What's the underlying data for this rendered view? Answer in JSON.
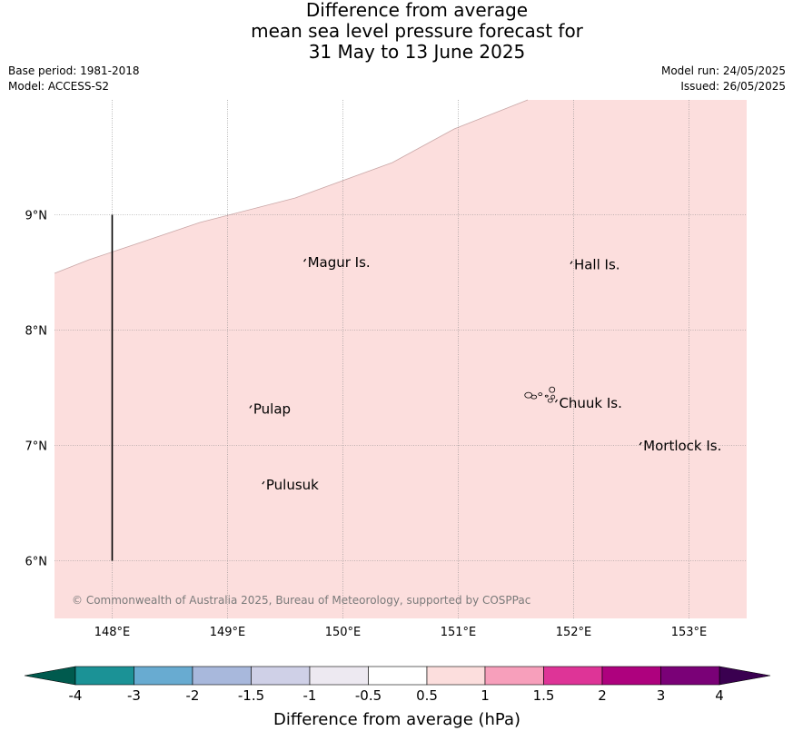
{
  "title": {
    "line1": "Difference from average",
    "line2": "mean sea level pressure forecast for",
    "line3": "31 May to 13 June 2025"
  },
  "meta": {
    "base_period": "Base period: 1981-2018",
    "model": "Model: ACCESS-S2",
    "model_run": "Model run: 24/05/2025",
    "issued": "Issued: 26/05/2025"
  },
  "map": {
    "fill_color": "#fcdedd",
    "grid_color": "#888888",
    "lon_ticks": [
      {
        "value": 148,
        "label": "148°E"
      },
      {
        "value": 149,
        "label": "149°E"
      },
      {
        "value": 150,
        "label": "150°E"
      },
      {
        "value": 151,
        "label": "151°E"
      },
      {
        "value": 152,
        "label": "152°E"
      },
      {
        "value": 153,
        "label": "153°E"
      }
    ],
    "lat_ticks": [
      {
        "value": 9,
        "label": "9°N"
      },
      {
        "value": 8,
        "label": "8°N"
      },
      {
        "value": 7,
        "label": "7°N"
      },
      {
        "value": 6,
        "label": "6°N"
      }
    ],
    "places": [
      {
        "name": "Magur Is.",
        "lon": 149.67,
        "lat": 8.57
      },
      {
        "name": "Hall Is.",
        "lon": 151.98,
        "lat": 8.55
      },
      {
        "name": "Pulap",
        "lon": 149.2,
        "lat": 7.3
      },
      {
        "name": "Chuuk Is.",
        "lon": 151.85,
        "lat": 7.35
      },
      {
        "name": "Mortlock Is.",
        "lon": 152.58,
        "lat": 6.98
      },
      {
        "name": "Pulusuk",
        "lon": 149.31,
        "lat": 6.64
      }
    ],
    "copyright": "© Commonwealth of Australia 2025, Bureau of Meteorology, supported by COSPPac"
  },
  "colorbar": {
    "title": "Difference from average (hPa)",
    "tick_labels": [
      "-4",
      "-3",
      "-2",
      "-1.5",
      "-1",
      "-0.5",
      "0.5",
      "1",
      "1.5",
      "2",
      "3",
      "4"
    ],
    "under_color": "#005a4e",
    "over_color": "#3a0050",
    "bins": [
      {
        "from": -4,
        "to": -3,
        "color": "#1b9296"
      },
      {
        "from": -3,
        "to": -2,
        "color": "#68abd1"
      },
      {
        "from": -2,
        "to": -1.5,
        "color": "#a8b8dc"
      },
      {
        "from": -1.5,
        "to": -1,
        "color": "#cfd0e7"
      },
      {
        "from": -1,
        "to": -0.5,
        "color": "#ede9f1"
      },
      {
        "from": -0.5,
        "to": 0.5,
        "color": "#ffffff"
      },
      {
        "from": 0.5,
        "to": 1,
        "color": "#fcdedd"
      },
      {
        "from": 1,
        "to": 1.5,
        "color": "#f79fbb"
      },
      {
        "from": 1.5,
        "to": 2,
        "color": "#de3497"
      },
      {
        "from": 2,
        "to": 3,
        "color": "#ae017e"
      },
      {
        "from": 3,
        "to": 4,
        "color": "#7a0177"
      }
    ]
  }
}
